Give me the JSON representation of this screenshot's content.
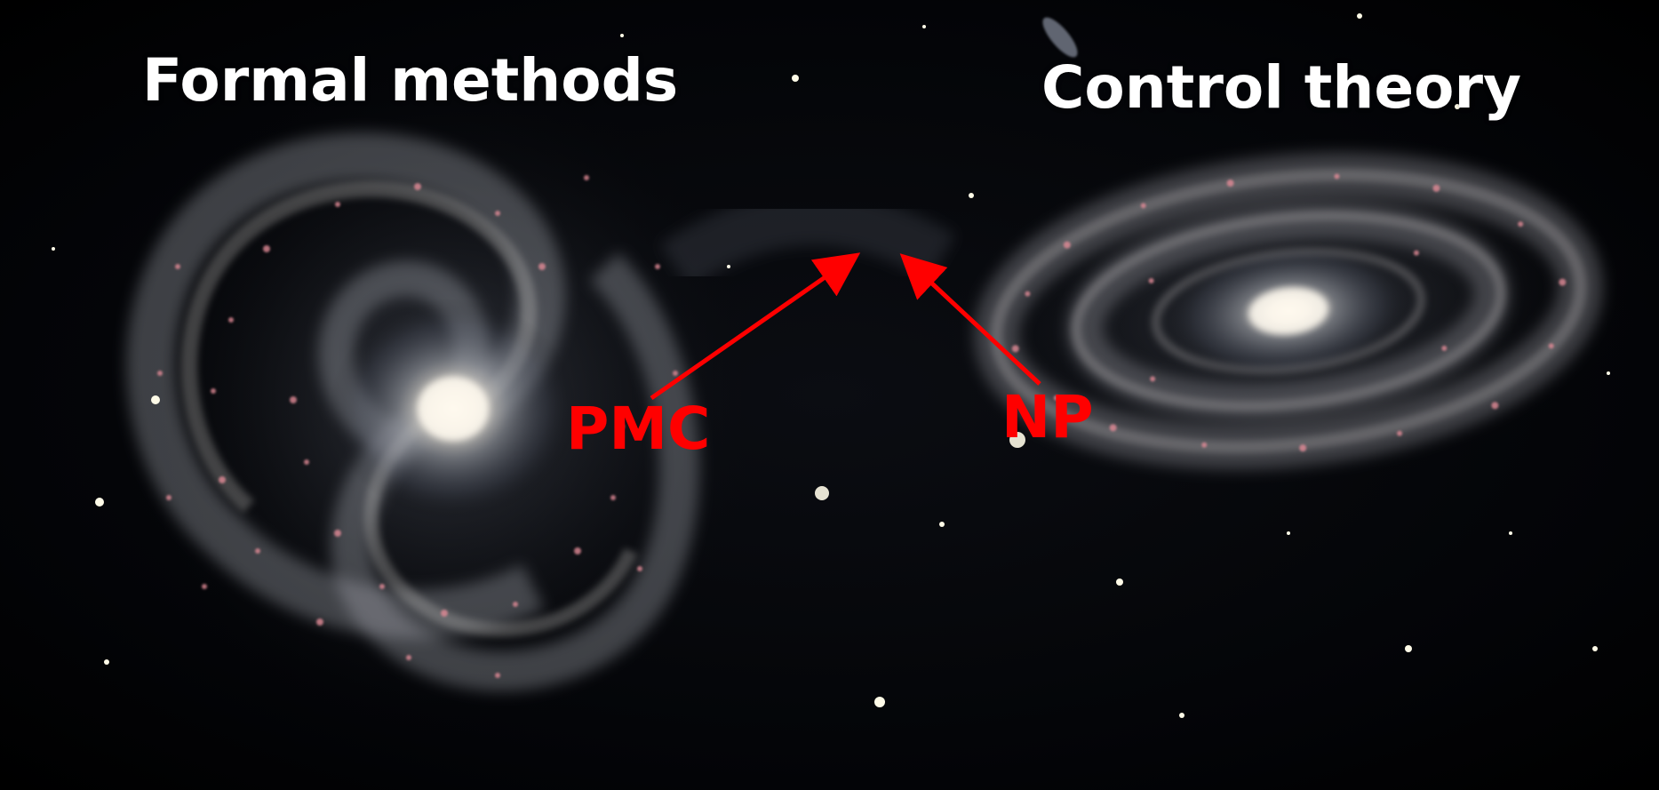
{
  "labels": {
    "left_galaxy": "Formal methods",
    "right_galaxy": "Control theory",
    "left_pointer": "PMC",
    "right_pointer": "NP"
  },
  "colors": {
    "background": "#000000",
    "title_text": "#ffffff",
    "annotation": "#ff0000"
  }
}
